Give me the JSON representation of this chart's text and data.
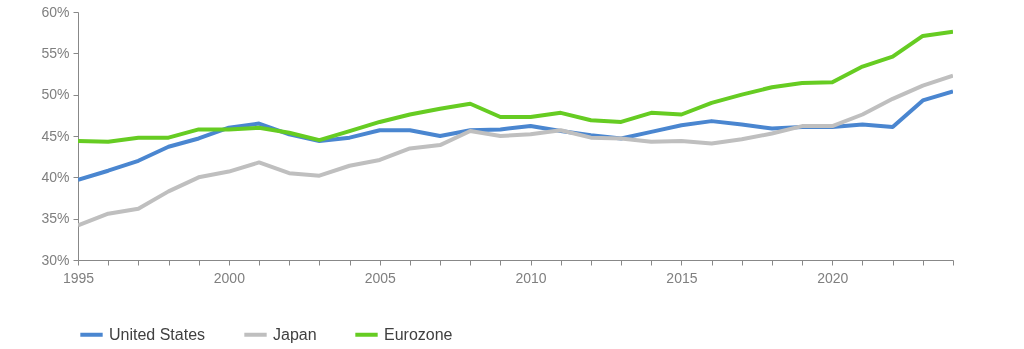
{
  "chart_data": {
    "type": "line",
    "x": [
      1995,
      1996,
      1997,
      1998,
      1999,
      2000,
      2001,
      2002,
      2003,
      2004,
      2005,
      2006,
      2007,
      2008,
      2009,
      2010,
      2011,
      2012,
      2013,
      2014,
      2015,
      2016,
      2017,
      2018,
      2019,
      2020,
      2021,
      2022,
      2023,
      2024
    ],
    "series": [
      {
        "name": "United States",
        "color": "#4a86d0",
        "values": [
          39.7,
          40.8,
          42.0,
          43.7,
          44.7,
          46.0,
          46.5,
          45.2,
          44.4,
          44.8,
          45.7,
          45.7,
          45.0,
          45.7,
          45.8,
          46.2,
          45.6,
          45.1,
          44.7,
          45.5,
          46.3,
          46.8,
          46.4,
          45.9,
          46.1,
          46.1,
          46.4,
          46.1,
          49.3,
          50.4
        ]
      },
      {
        "name": "Japan",
        "color": "#bfbfbf",
        "values": [
          34.2,
          35.6,
          36.2,
          38.3,
          40.0,
          40.7,
          41.8,
          40.5,
          40.2,
          41.4,
          42.1,
          43.5,
          43.9,
          45.6,
          45.0,
          45.2,
          45.7,
          44.8,
          44.7,
          44.3,
          44.4,
          44.1,
          44.6,
          45.3,
          46.2,
          46.2,
          47.6,
          49.5,
          51.1,
          52.3
        ]
      },
      {
        "name": "Eurozone",
        "color": "#66cc22",
        "values": [
          44.4,
          44.3,
          44.8,
          44.8,
          45.8,
          45.8,
          46.0,
          45.4,
          44.5,
          45.6,
          46.7,
          47.6,
          48.3,
          48.9,
          47.3,
          47.3,
          47.8,
          46.9,
          46.7,
          47.8,
          47.6,
          49.0,
          50.0,
          50.9,
          51.4,
          51.5,
          53.4,
          54.6,
          57.1,
          57.6
        ]
      }
    ],
    "xlim": [
      1995,
      2024
    ],
    "xticks": [
      1995,
      {
        "value": 1996,
        "label": null
      },
      {
        "value": 1997,
        "label": null
      },
      {
        "value": 1998,
        "label": null
      },
      {
        "value": 1999,
        "label": null
      },
      2000,
      {
        "value": 2001,
        "label": null
      },
      {
        "value": 2002,
        "label": null
      },
      {
        "value": 2003,
        "label": null
      },
      {
        "value": 2004,
        "label": null
      },
      2005,
      {
        "value": 2006,
        "label": null
      },
      {
        "value": 2007,
        "label": null
      },
      {
        "value": 2008,
        "label": null
      },
      {
        "value": 2009,
        "label": null
      },
      2010,
      {
        "value": 2011,
        "label": null
      },
      {
        "value": 2012,
        "label": null
      },
      {
        "value": 2013,
        "label": null
      },
      {
        "value": 2014,
        "label": null
      },
      2015,
      {
        "value": 2016,
        "label": null
      },
      {
        "value": 2017,
        "label": null
      },
      {
        "value": 2018,
        "label": null
      },
      {
        "value": 2019,
        "label": null
      },
      2020,
      {
        "value": 2021,
        "label": null
      },
      {
        "value": 2022,
        "label": null
      },
      {
        "value": 2023,
        "label": null
      },
      {
        "value": 2024,
        "label": null
      }
    ],
    "ylim": [
      30,
      60
    ],
    "yticks": [
      {
        "value": 30,
        "label": "30%"
      },
      {
        "value": 35,
        "label": "35%"
      },
      {
        "value": 40,
        "label": "40%"
      },
      {
        "value": 45,
        "label": "45%"
      },
      {
        "value": 50,
        "label": "50%"
      },
      {
        "value": 55,
        "label": "55%"
      },
      {
        "value": 60,
        "label": "60%"
      }
    ],
    "grid": false,
    "legend": "bottom",
    "marker": "none"
  }
}
